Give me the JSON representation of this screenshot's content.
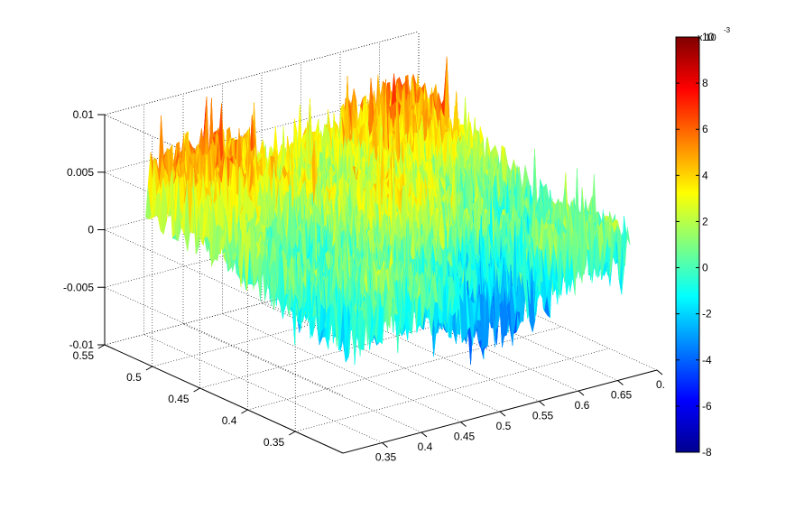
{
  "chart_data": {
    "type": "surface3d",
    "title": "",
    "xlabel": "",
    "ylabel": "",
    "zlabel": "",
    "x_ticks": [
      "0.35",
      "0.4",
      "0.45",
      "0.5",
      "0.55",
      "0.6",
      "0.65",
      "0."
    ],
    "y_ticks": [
      "0.35",
      "0.4",
      "0.45",
      "0.5",
      "0.55"
    ],
    "z_ticks": [
      "-0.01",
      "-0.005",
      "0",
      "0.005",
      "0.01"
    ],
    "xlim": [
      0.3,
      0.7
    ],
    "ylim": [
      0.3,
      0.55
    ],
    "zlim": [
      -0.01,
      0.01
    ],
    "grid": true,
    "colormap": "jet",
    "surface_z_range": [
      -0.008,
      0.01
    ],
    "colorbar": {
      "ticks": [
        "10",
        "8",
        "6",
        "4",
        "2",
        "0",
        "-2",
        "-4",
        "-6",
        "-8"
      ],
      "exponent_label": "x 10",
      "exponent": "-3",
      "range": [
        -8,
        10
      ]
    }
  }
}
